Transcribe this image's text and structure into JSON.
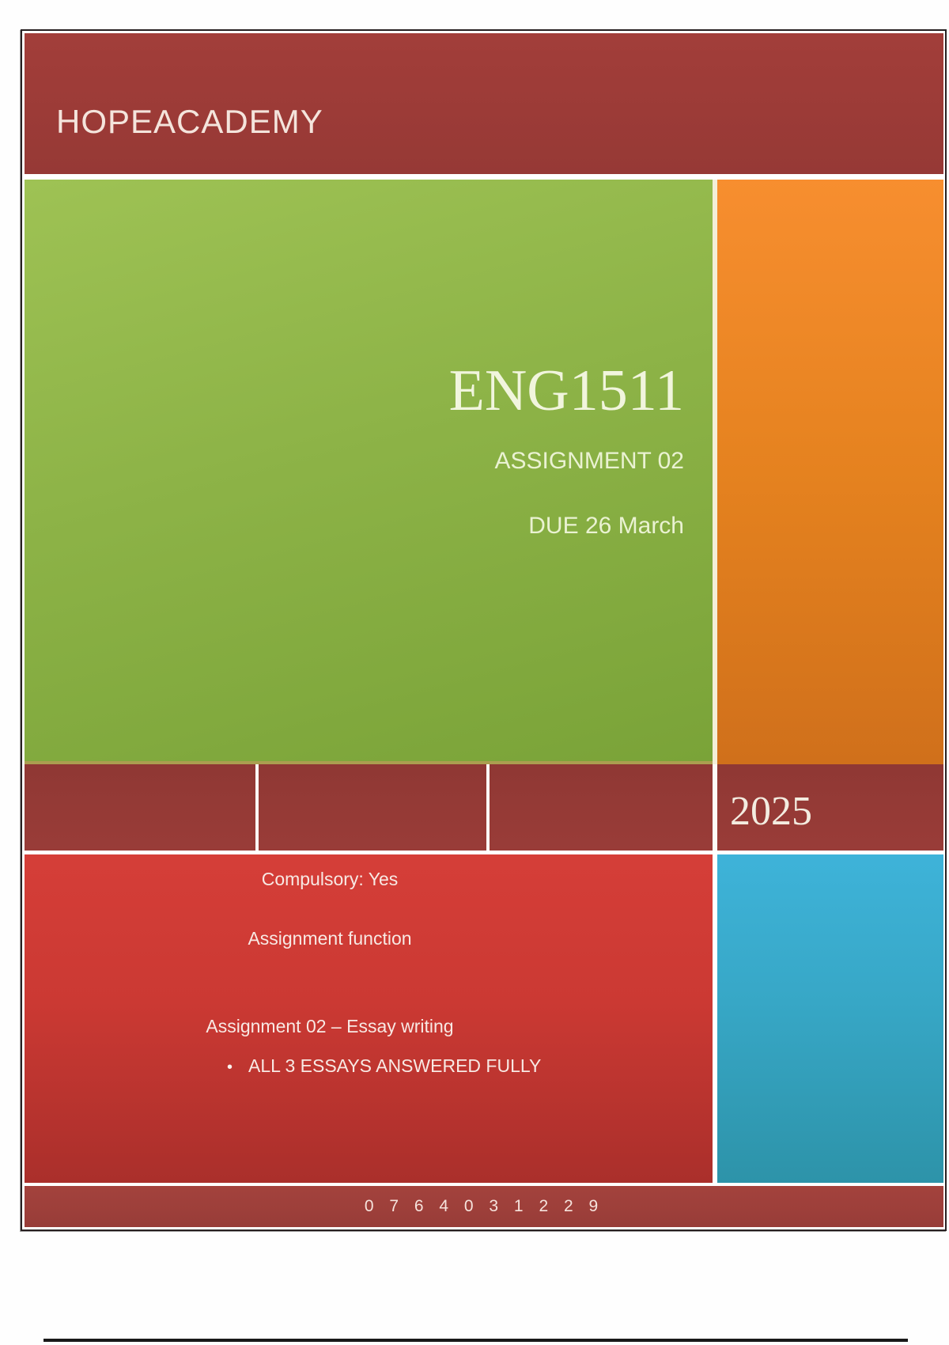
{
  "header": {
    "title": "HOPEACADEMY"
  },
  "hero": {
    "course_code": "ENG1511",
    "assignment": "ASSIGNMENT 02",
    "due": "DUE 26 March"
  },
  "year_band": {
    "year": "2025"
  },
  "details": {
    "compulsory": "Compulsory: Yes",
    "function": "Assignment function",
    "heading": "Assignment 02 – Essay writing",
    "bullet_glyph": "•",
    "bullets": [
      "ALL 3 ESSAYS ANSWERED FULLY"
    ]
  },
  "footer": {
    "phone": "0 7 6 4 0 3 1 2 2 9"
  },
  "colors": {
    "maroon_header": "#9c3b37",
    "maroon_band": "#953a36",
    "maroon_footer": "#9d3f3a",
    "green": "#8db347",
    "orange": "#e5821f",
    "red": "#cb3933",
    "blue": "#37a7c6",
    "cream_text": "#f3ece0",
    "frame": "#272021"
  }
}
